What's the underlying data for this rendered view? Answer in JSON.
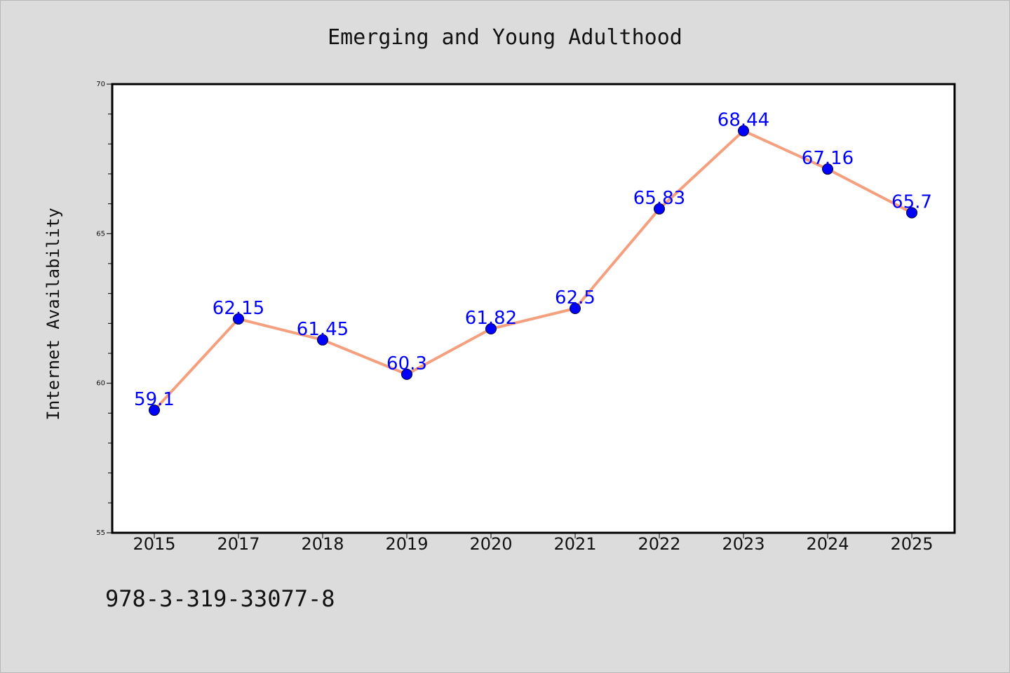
{
  "chart_data": {
    "type": "line",
    "title": "Emerging and Young Adulthood",
    "xlabel": "",
    "ylabel": "Internet Availability",
    "categories": [
      "2015",
      "2017",
      "2018",
      "2019",
      "2020",
      "2021",
      "2022",
      "2023",
      "2024",
      "2025"
    ],
    "series": [
      {
        "values": [
          59.1,
          62.15,
          61.45,
          60.3,
          61.82,
          62.5,
          65.83,
          68.44,
          67.16,
          65.7
        ],
        "labels": [
          "59.1",
          "62.15",
          "61.45",
          "60.3",
          "61.82",
          "62.5",
          "65.83",
          "68.44",
          "67.16",
          "65.7"
        ],
        "line_color": "#f4a07f",
        "marker_color": "#0000ff"
      }
    ],
    "ylim": [
      55,
      70
    ],
    "yticks": [
      "55",
      "60",
      "65",
      "70"
    ],
    "grid": false,
    "footnote": "978-3-319-33077-8"
  },
  "colors": {
    "background": "#dcdcdc",
    "plot_background": "#ffffff",
    "line": "#f4a07f",
    "marker": "#0000ff",
    "data_label": "#0000ff"
  }
}
